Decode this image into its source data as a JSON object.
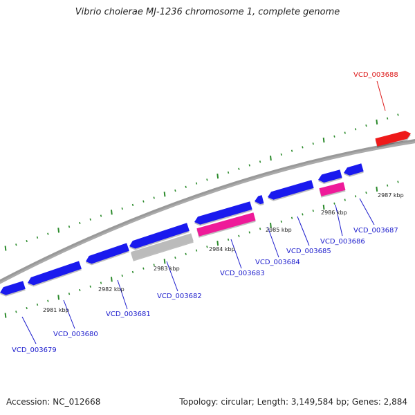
{
  "title": "Vibrio cholerae MJ-1236 chromosome 1, complete genome",
  "footer": {
    "accession": "Accession: NC_012668",
    "summary": "Topology: circular; Length: 3,149,584 bp; Genes: 2,884"
  },
  "colors": {
    "forward_gene": "#1a1aee",
    "reverse_gene": "#ee1a1a",
    "rna_gene": "#ee1a99",
    "pseudo_gene": "#bbbbbb",
    "backbone": "#888888",
    "tick": "#2a8a2a",
    "label_blue": "#1a1acc",
    "label_red": "#dd1a1a"
  },
  "tick_labels": [
    "2981 kbp",
    "2982 kbp",
    "2983 kbp",
    "2984 kbp",
    "2985 kbp",
    "2986 kbp",
    "2987 kbp"
  ],
  "gene_labels": [
    "VCD_003679",
    "VCD_003680",
    "VCD_003681",
    "VCD_003682",
    "VCD_003683",
    "VCD_003684",
    "VCD_003685",
    "VCD_003686",
    "VCD_003687",
    "VCD_003688"
  ]
}
